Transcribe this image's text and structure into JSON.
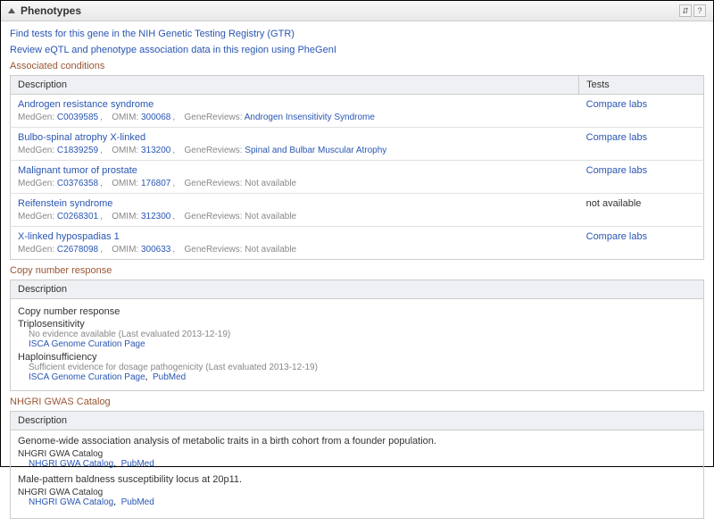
{
  "panel": {
    "title": "Phenotypes"
  },
  "header_icons": {
    "updown": "⇵",
    "help": "?"
  },
  "top_links": {
    "gtr": "Find tests for this gene in the NIH Genetic Testing Registry (GTR)",
    "phegeni": "Review eQTL and phenotype association data in this region using PheGenI"
  },
  "sections": {
    "assoc": "Associated conditions",
    "cnr": "Copy number response",
    "gwas": "NHGRI GWAS Catalog"
  },
  "table": {
    "col_desc": "Description",
    "col_tests": "Tests",
    "labels": {
      "medgen": "MedGen:",
      "omim": "OMIM:",
      "gr": "GeneReviews:",
      "gr_na": "Not available"
    },
    "rows": [
      {
        "name": "Androgen resistance syndrome",
        "medgen": "C0039585",
        "omim": "300068",
        "gr": "Androgen Insensitivity Syndrome",
        "tests": "Compare labs",
        "tests_link": true
      },
      {
        "name": "Bulbo-spinal atrophy X-linked",
        "medgen": "C1839259",
        "omim": "313200",
        "gr": "Spinal and Bulbar Muscular Atrophy",
        "tests": "Compare labs",
        "tests_link": true
      },
      {
        "name": "Malignant tumor of prostate",
        "medgen": "C0376358",
        "omim": "176807",
        "gr": "",
        "tests": "Compare labs",
        "tests_link": true
      },
      {
        "name": "Reifenstein syndrome",
        "medgen": "C0268301",
        "omim": "312300",
        "gr": "",
        "tests": "not available",
        "tests_link": false
      },
      {
        "name": "X-linked hypospadias 1",
        "medgen": "C2678098",
        "omim": "300633",
        "gr": "",
        "tests": "Compare labs",
        "tests_link": true
      }
    ]
  },
  "cnr": {
    "desc_header": "Description",
    "title": "Copy number response",
    "triplo_label": "Triplosensitivity",
    "triplo_detail": "No evidence available (Last evaluated 2013-12-19)",
    "triplo_link1": "ISCA Genome Curation Page",
    "haplo_label": "Haploinsufficiency",
    "haplo_detail": "Sufficient evidence for dosage pathogenicity (Last evaluated 2013-12-19)",
    "haplo_link1": "ISCA Genome Curation Page",
    "haplo_link2": "PubMed"
  },
  "gwas": {
    "desc_header": "Description",
    "cat_label": "NHGRI GWA Catalog",
    "link1": "NHGRI GWA Catalog",
    "link2": "PubMed",
    "entries": [
      {
        "title": "Genome-wide association analysis of metabolic traits in a birth cohort from a founder population."
      },
      {
        "title": "Male-pattern baldness susceptibility locus at 20p11."
      }
    ]
  },
  "colors": {
    "link": "#2956b2",
    "section_title": "#985735",
    "header_bg_top": "#f8f8f8",
    "header_bg_bottom": "#e8e8e8",
    "table_header_bg": "#eef0f3",
    "border": "#cccccc",
    "meta_text": "#888888"
  }
}
